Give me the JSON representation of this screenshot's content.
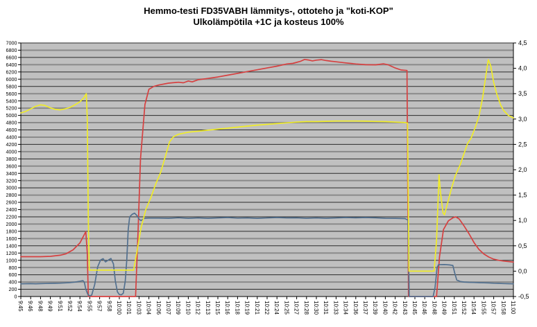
{
  "chart_data": {
    "type": "line",
    "title": "Hemmo-testi FD35VABH lämmitys-, ottoteho ja \"koti-KOP\"",
    "subtitle": "Ulkolämpötila +1C ja kosteus 100%",
    "plot_bg": "#c0c0c0",
    "grid": {
      "on": true,
      "minor_color": "#2a2a2a",
      "major_color": "#8a8a8a",
      "pattern": "thin dark line every 200, thicker gray line alternating"
    },
    "legend_position": "none",
    "x_labels": [
      "9:45",
      "9:46",
      "9:48",
      "9:49",
      "9:51",
      "9:52",
      "9:54",
      "9:55",
      "9:57",
      "9:58",
      "10:00",
      "10:01",
      "10:03",
      "10:04",
      "10:06",
      "10:07",
      "10:09",
      "10:10",
      "10:12",
      "10:13",
      "10:15",
      "10:16",
      "10:18",
      "10:19",
      "10:21",
      "10:22",
      "10:24",
      "10:25",
      "10:27",
      "10:28",
      "10:30",
      "10:31",
      "10:33",
      "10:34",
      "10:36",
      "10:37",
      "10:39",
      "10:40",
      "10:42",
      "10:43",
      "10:45",
      "10:46",
      "10:48",
      "10:49",
      "10:51",
      "10:52",
      "10:54",
      "10:55",
      "10:57",
      "10:58",
      "11:00"
    ],
    "left_axis": {
      "min": 0,
      "max": 7000,
      "step": 200,
      "labels": [
        "7000",
        "6800",
        "6600",
        "6400",
        "6200",
        "6000",
        "5800",
        "5600",
        "5400",
        "5200",
        "5000",
        "4800",
        "4600",
        "4400",
        "4200",
        "4000",
        "3800",
        "3600",
        "3400",
        "3200",
        "3000",
        "2800",
        "2600",
        "2400",
        "2200",
        "2000",
        "1800",
        "1600",
        "1400",
        "1200",
        "1000",
        "800",
        "600",
        "400",
        "200",
        "0"
      ]
    },
    "right_axis": {
      "min": -0.5,
      "max": 4.5,
      "step": 0.5,
      "labels": [
        "4,5",
        "4,0",
        "3,5",
        "3,0",
        "2,5",
        "2,0",
        "1,5",
        "1,0",
        "0,5",
        "0,0",
        "-0,5"
      ]
    },
    "series": [
      {
        "name": "lämmitysteho",
        "color_desc": "red",
        "color": "#d64040",
        "axis": "left",
        "values": [
          1100,
          1100,
          1100,
          1110,
          1140,
          1290,
          1480,
          0,
          0,
          0,
          0,
          0,
          3800,
          5720,
          5840,
          5890,
          5915,
          5950,
          5985,
          6020,
          6060,
          6110,
          6160,
          6210,
          6260,
          6310,
          6360,
          6420,
          6465,
          6540,
          6525,
          6515,
          6480,
          6450,
          6420,
          6400,
          6395,
          6425,
          6310,
          6240,
          0,
          0,
          0,
          1850,
          2200,
          1945,
          1490,
          1175,
          1030,
          980,
          950
        ],
        "points": [
          [
            0,
            1100
          ],
          [
            1,
            1100
          ],
          [
            2,
            1100
          ],
          [
            3,
            1110
          ],
          [
            4,
            1140
          ],
          [
            4.6,
            1180
          ],
          [
            5.3,
            1290
          ],
          [
            6,
            1480
          ],
          [
            6.6,
            1790
          ],
          [
            6.75,
            1200
          ],
          [
            6.85,
            0
          ],
          [
            11.65,
            0
          ],
          [
            11.9,
            1800
          ],
          [
            12.15,
            3800
          ],
          [
            12.6,
            5300
          ],
          [
            13,
            5720
          ],
          [
            13.5,
            5800
          ],
          [
            14,
            5840
          ],
          [
            15,
            5890
          ],
          [
            16,
            5915
          ],
          [
            16.5,
            5900
          ],
          [
            17,
            5950
          ],
          [
            17.4,
            5925
          ],
          [
            18,
            5985
          ],
          [
            19,
            6020
          ],
          [
            20,
            6060
          ],
          [
            21,
            6110
          ],
          [
            22,
            6160
          ],
          [
            23,
            6210
          ],
          [
            24,
            6260
          ],
          [
            25,
            6310
          ],
          [
            26,
            6360
          ],
          [
            27,
            6420
          ],
          [
            27.6,
            6435
          ],
          [
            28,
            6465
          ],
          [
            28.4,
            6495
          ],
          [
            28.8,
            6545
          ],
          [
            29.2,
            6530
          ],
          [
            29.6,
            6505
          ],
          [
            30,
            6525
          ],
          [
            30.5,
            6540
          ],
          [
            31,
            6515
          ],
          [
            31.5,
            6495
          ],
          [
            32,
            6480
          ],
          [
            33,
            6450
          ],
          [
            34,
            6420
          ],
          [
            35,
            6400
          ],
          [
            36,
            6395
          ],
          [
            36.8,
            6425
          ],
          [
            37.3,
            6395
          ],
          [
            38,
            6310
          ],
          [
            38.6,
            6255
          ],
          [
            39.2,
            6240
          ],
          [
            39.35,
            0
          ],
          [
            42.2,
            0
          ],
          [
            42.5,
            1100
          ],
          [
            42.9,
            1850
          ],
          [
            43.4,
            2090
          ],
          [
            43.9,
            2180
          ],
          [
            44.15,
            2200
          ],
          [
            44.5,
            2140
          ],
          [
            45,
            1945
          ],
          [
            45.5,
            1730
          ],
          [
            46,
            1490
          ],
          [
            46.5,
            1300
          ],
          [
            47,
            1175
          ],
          [
            47.5,
            1090
          ],
          [
            48,
            1030
          ],
          [
            48.5,
            1000
          ],
          [
            49,
            980
          ],
          [
            49.5,
            965
          ],
          [
            50,
            950
          ]
        ]
      },
      {
        "name": "ottoteho",
        "color_desc": "blue",
        "color": "#52708f",
        "axis": "left",
        "values": [
          350,
          355,
          352,
          360,
          368,
          385,
          420,
          15,
          1010,
          1050,
          55,
          2200,
          2140,
          2165,
          2165,
          2160,
          2175,
          2160,
          2170,
          2160,
          2170,
          2180,
          2165,
          2170,
          2160,
          2170,
          2180,
          2170,
          2172,
          2162,
          2170,
          2162,
          2170,
          2180,
          2172,
          2180,
          2172,
          2162,
          2160,
          2152,
          0,
          0,
          800,
          882,
          640,
          400,
          388,
          378,
          368,
          358,
          350
        ],
        "points": [
          [
            0,
            350
          ],
          [
            1,
            355
          ],
          [
            1.5,
            352
          ],
          [
            2,
            356
          ],
          [
            2.5,
            360
          ],
          [
            3,
            363
          ],
          [
            3.5,
            366
          ],
          [
            4,
            370
          ],
          [
            4.5,
            376
          ],
          [
            5,
            385
          ],
          [
            5.5,
            398
          ],
          [
            6,
            420
          ],
          [
            6.3,
            438
          ],
          [
            6.45,
            390
          ],
          [
            6.6,
            200
          ],
          [
            6.8,
            60
          ],
          [
            7,
            15
          ],
          [
            7.2,
            40
          ],
          [
            7.5,
            330
          ],
          [
            7.8,
            820
          ],
          [
            8.1,
            1010
          ],
          [
            8.35,
            1045
          ],
          [
            8.6,
            955
          ],
          [
            8.9,
            1010
          ],
          [
            9.15,
            1050
          ],
          [
            9.4,
            900
          ],
          [
            9.6,
            420
          ],
          [
            9.8,
            130
          ],
          [
            10,
            55
          ],
          [
            10.2,
            45
          ],
          [
            10.4,
            90
          ],
          [
            10.6,
            420
          ],
          [
            10.75,
            1000
          ],
          [
            10.9,
            1850
          ],
          [
            11.05,
            2200
          ],
          [
            11.3,
            2270
          ],
          [
            11.55,
            2300
          ],
          [
            11.8,
            2230
          ],
          [
            12,
            2140
          ],
          [
            12.2,
            2095
          ],
          [
            12.5,
            2155
          ],
          [
            13,
            2165
          ],
          [
            14,
            2165
          ],
          [
            15,
            2160
          ],
          [
            16,
            2175
          ],
          [
            17,
            2160
          ],
          [
            18,
            2170
          ],
          [
            19,
            2160
          ],
          [
            20,
            2170
          ],
          [
            21,
            2180
          ],
          [
            22,
            2165
          ],
          [
            23,
            2170
          ],
          [
            24,
            2160
          ],
          [
            25,
            2170
          ],
          [
            26,
            2180
          ],
          [
            27,
            2170
          ],
          [
            28,
            2172
          ],
          [
            29,
            2162
          ],
          [
            30,
            2170
          ],
          [
            31,
            2162
          ],
          [
            32,
            2170
          ],
          [
            33,
            2180
          ],
          [
            34,
            2172
          ],
          [
            35,
            2180
          ],
          [
            36,
            2172
          ],
          [
            37,
            2162
          ],
          [
            38,
            2160
          ],
          [
            39,
            2152
          ],
          [
            39.3,
            2110
          ],
          [
            39.42,
            0
          ],
          [
            41.85,
            0
          ],
          [
            42.05,
            260
          ],
          [
            42.25,
            800
          ],
          [
            42.4,
            880
          ],
          [
            43,
            882
          ],
          [
            43.5,
            872
          ],
          [
            43.85,
            858
          ],
          [
            44.05,
            640
          ],
          [
            44.25,
            455
          ],
          [
            44.6,
            415
          ],
          [
            45,
            400
          ],
          [
            45.5,
            392
          ],
          [
            46,
            388
          ],
          [
            46.5,
            383
          ],
          [
            47,
            378
          ],
          [
            47.5,
            374
          ],
          [
            48,
            368
          ],
          [
            48.5,
            363
          ],
          [
            49,
            358
          ],
          [
            49.5,
            353
          ],
          [
            50,
            350
          ]
        ]
      },
      {
        "name": "koti-KOP",
        "color_desc": "yellow",
        "color": "#f0ec28",
        "axis": "right",
        "values": [
          3.12,
          3.2,
          3.28,
          3.22,
          3.18,
          3.23,
          3.34,
          0,
          0,
          0,
          0,
          0,
          0.85,
          1.45,
          1.95,
          2.55,
          2.7,
          2.74,
          2.76,
          2.78,
          2.8,
          2.82,
          2.84,
          2.86,
          2.88,
          2.9,
          2.91,
          2.93,
          2.94,
          2.95,
          2.95,
          2.96,
          2.96,
          2.96,
          2.96,
          2.96,
          2.95,
          2.95,
          2.94,
          2.93,
          0,
          0,
          0.6,
          1.11,
          1.88,
          2.38,
          2.82,
          3.85,
          3.72,
          3.17,
          3.02
        ],
        "points": [
          [
            0,
            3.12
          ],
          [
            0.5,
            3.15
          ],
          [
            1,
            3.2
          ],
          [
            1.5,
            3.25
          ],
          [
            2,
            3.28
          ],
          [
            2.4,
            3.27
          ],
          [
            3,
            3.22
          ],
          [
            3.5,
            3.19
          ],
          [
            4,
            3.18
          ],
          [
            4.5,
            3.2
          ],
          [
            5,
            3.23
          ],
          [
            5.5,
            3.28
          ],
          [
            6,
            3.34
          ],
          [
            6.4,
            3.42
          ],
          [
            6.65,
            3.5
          ],
          [
            6.75,
            3.0
          ],
          [
            6.85,
            1.0
          ],
          [
            6.95,
            0.02
          ],
          [
            11.45,
            0.02
          ],
          [
            11.8,
            0.4
          ],
          [
            12.2,
            0.85
          ],
          [
            12.7,
            1.22
          ],
          [
            13.2,
            1.45
          ],
          [
            13.7,
            1.72
          ],
          [
            14.2,
            1.95
          ],
          [
            14.7,
            2.28
          ],
          [
            15.1,
            2.55
          ],
          [
            15.5,
            2.65
          ],
          [
            16,
            2.7
          ],
          [
            16.5,
            2.72
          ],
          [
            17,
            2.74
          ],
          [
            18,
            2.76
          ],
          [
            19,
            2.78
          ],
          [
            20,
            2.8
          ],
          [
            21,
            2.82
          ],
          [
            22,
            2.84
          ],
          [
            23,
            2.86
          ],
          [
            24,
            2.88
          ],
          [
            25,
            2.895
          ],
          [
            26,
            2.91
          ],
          [
            27,
            2.925
          ],
          [
            28,
            2.94
          ],
          [
            29,
            2.95
          ],
          [
            30,
            2.95
          ],
          [
            31,
            2.955
          ],
          [
            32,
            2.96
          ],
          [
            33,
            2.96
          ],
          [
            34,
            2.96
          ],
          [
            35,
            2.958
          ],
          [
            36,
            2.952
          ],
          [
            37,
            2.95
          ],
          [
            38,
            2.94
          ],
          [
            39,
            2.93
          ],
          [
            39.25,
            2.92
          ],
          [
            39.4,
            0.0
          ],
          [
            41.95,
            0.0
          ],
          [
            42.2,
            0.6
          ],
          [
            42.45,
            1.9
          ],
          [
            42.6,
            1.55
          ],
          [
            42.85,
            1.15
          ],
          [
            43.0,
            1.11
          ],
          [
            43.3,
            1.33
          ],
          [
            43.7,
            1.62
          ],
          [
            44.1,
            1.88
          ],
          [
            44.6,
            2.1
          ],
          [
            45.1,
            2.38
          ],
          [
            45.35,
            2.52
          ],
          [
            45.7,
            2.62
          ],
          [
            46.1,
            2.82
          ],
          [
            46.5,
            3.05
          ],
          [
            46.9,
            3.45
          ],
          [
            47.2,
            3.85
          ],
          [
            47.45,
            4.17
          ],
          [
            47.7,
            4.05
          ],
          [
            48,
            3.72
          ],
          [
            48.3,
            3.5
          ],
          [
            48.7,
            3.28
          ],
          [
            49,
            3.17
          ],
          [
            49.5,
            3.07
          ],
          [
            50,
            3.02
          ]
        ]
      }
    ]
  }
}
